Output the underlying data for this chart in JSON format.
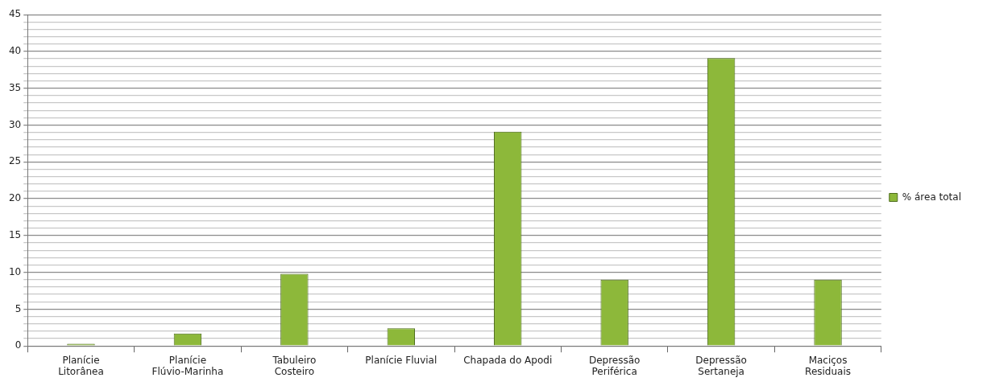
{
  "chart_data": {
    "type": "bar",
    "categories": [
      "Planície Litorânea",
      "Planície Flúvio-Marinha",
      "Tabuleiro Costeiro",
      "Planície Fluvial",
      "Chapada do Apodi",
      "Depressão Periférica",
      "Depressão Sertaneja",
      "Maciços Residuais"
    ],
    "series": [
      {
        "name": "% área total",
        "color": "#8db83a",
        "values": [
          0.3,
          1.7,
          9.8,
          2.4,
          29.1,
          9.0,
          39.1,
          9.0
        ]
      }
    ],
    "ylim": [
      0,
      45
    ],
    "yticks": [
      0,
      {
        "value": 1,
        "label": null
      },
      {
        "value": 2,
        "label": null
      },
      {
        "value": 3,
        "label": null
      },
      {
        "value": 4,
        "label": null
      },
      5,
      {
        "value": 6,
        "label": null
      },
      {
        "value": 7,
        "label": null
      },
      {
        "value": 8,
        "label": null
      },
      {
        "value": 9,
        "label": null
      },
      10,
      {
        "value": 11,
        "label": null
      },
      {
        "value": 12,
        "label": null
      },
      {
        "value": 13,
        "label": null
      },
      {
        "value": 14,
        "label": null
      },
      15,
      {
        "value": 16,
        "label": null
      },
      {
        "value": 17,
        "label": null
      },
      {
        "value": 18,
        "label": null
      },
      {
        "value": 19,
        "label": null
      },
      20,
      {
        "value": 21,
        "label": null
      },
      {
        "value": 22,
        "label": null
      },
      {
        "value": 23,
        "label": null
      },
      {
        "value": 24,
        "label": null
      },
      25,
      {
        "value": 26,
        "label": null
      },
      {
        "value": 27,
        "label": null
      },
      {
        "value": 28,
        "label": null
      },
      {
        "value": 29,
        "label": null
      },
      30,
      {
        "value": 31,
        "label": null
      },
      {
        "value": 32,
        "label": null
      },
      {
        "value": 33,
        "label": null
      },
      {
        "value": 34,
        "label": null
      },
      35,
      {
        "value": 36,
        "label": null
      },
      {
        "value": 37,
        "label": null
      },
      {
        "value": 38,
        "label": null
      },
      {
        "value": 39,
        "label": null
      },
      40,
      {
        "value": 41,
        "label": null
      },
      {
        "value": 42,
        "label": null
      },
      {
        "value": 43,
        "label": null
      },
      {
        "value": 44,
        "label": null
      },
      45
    ],
    "grid": true,
    "legend": "right"
  }
}
